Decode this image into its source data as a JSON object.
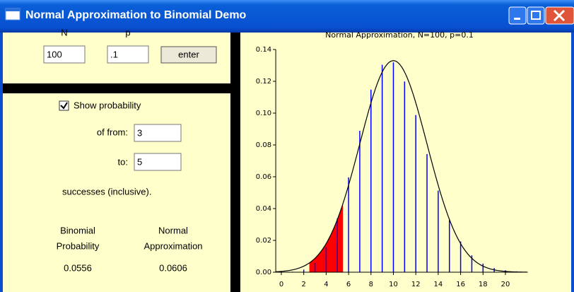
{
  "window": {
    "title": "Normal Approximation to Binomial Demo"
  },
  "inputs": {
    "n_label": "N",
    "p_label": "p",
    "n": "100",
    "p": ".1",
    "enter": "enter"
  },
  "probability": {
    "show": "Show probability",
    "from_label": "of from:",
    "from": "3",
    "to_label": "to:",
    "to": "5",
    "note": "successes (inclusive).",
    "binomial_label": [
      "Binomial",
      "Probability"
    ],
    "binomial_value": "0.0556",
    "normal_label": [
      "Normal",
      "Approximation"
    ],
    "normal_value": "0.0606"
  },
  "chart_data": {
    "type": "bar",
    "title": "Normal Approximation, N=100, p=0.1",
    "categories": [
      0,
      1,
      2,
      3,
      4,
      5,
      6,
      7,
      8,
      9,
      10,
      11,
      12,
      13,
      14,
      15,
      16,
      17,
      18,
      19,
      20,
      21
    ],
    "values": [
      2.66e-05,
      0.000295,
      0.00162,
      0.00589,
      0.0159,
      0.0339,
      0.0596,
      0.0889,
      0.1148,
      0.1304,
      0.1319,
      0.1199,
      0.0988,
      0.0743,
      0.0513,
      0.0327,
      0.0193,
      0.0106,
      0.0054,
      0.0026,
      0.0012,
      0.0005
    ],
    "color": "#0000ff",
    "curve_color": "#000000",
    "shade_color": "#ff0000",
    "xlim": [
      -0.5,
      22
    ],
    "xticks": [
      0,
      2,
      4,
      6,
      8,
      10,
      12,
      14,
      16,
      18,
      20
    ],
    "ylim": [
      0,
      0.14
    ],
    "yticks": [
      {
        "value": 0,
        "label": "0.00"
      },
      {
        "value": 0.02,
        "label": "0.02"
      },
      {
        "value": 0.04,
        "label": "0.04"
      },
      {
        "value": 0.06,
        "label": "0.06"
      },
      {
        "value": 0.08,
        "label": "0.08"
      },
      {
        "value": 0.1,
        "label": "0.10"
      },
      {
        "value": 0.12,
        "label": "0.12"
      },
      {
        "value": 0.14,
        "label": "0.14"
      }
    ]
  }
}
